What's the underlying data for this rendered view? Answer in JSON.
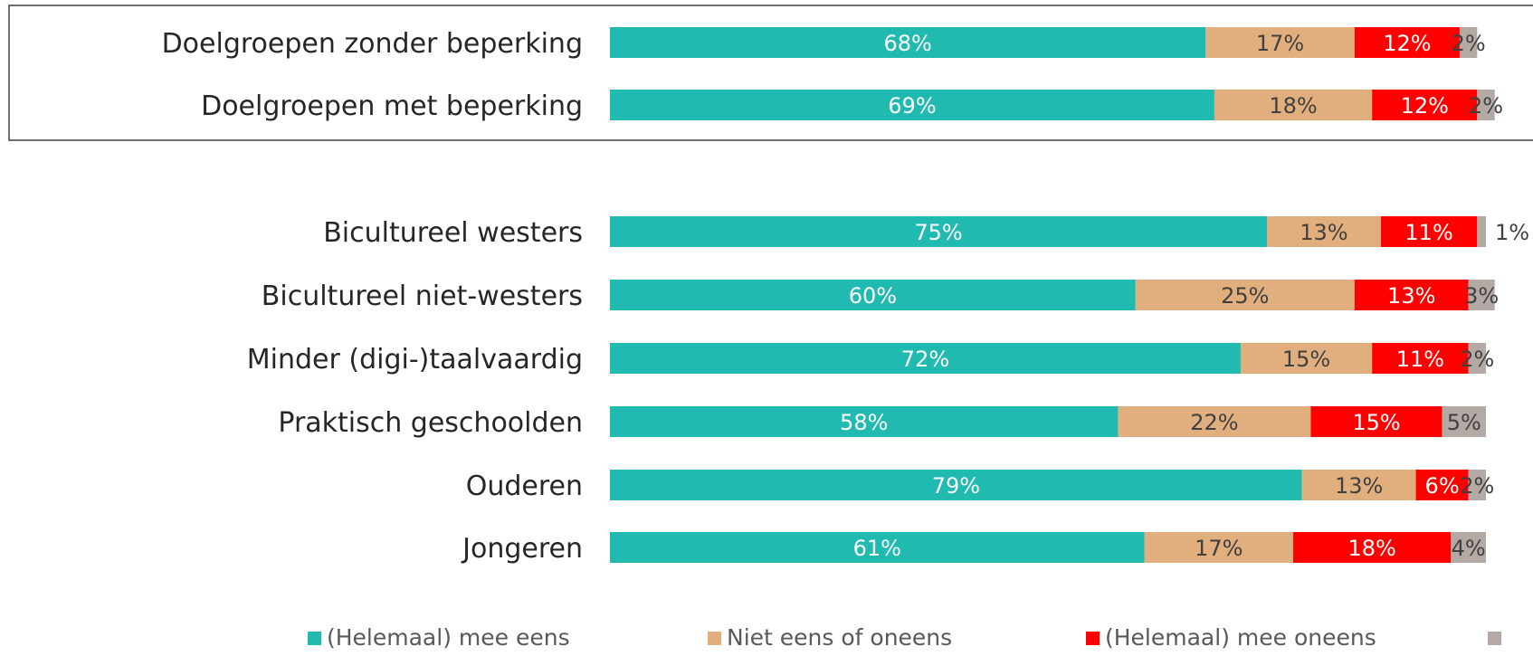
{
  "chart_data": {
    "type": "bar",
    "orientation": "horizontal",
    "stacked": true,
    "normalized_percent": true,
    "title": "",
    "xlabel": "",
    "ylabel": "",
    "xlim": [
      0,
      100
    ],
    "grid": false,
    "legend_position": "bottom",
    "groups": [
      {
        "boxed": true,
        "categories": [
          "Doelgroepen zonder beperking",
          "Doelgroepen met beperking"
        ],
        "series_values": [
          [
            68,
            17,
            12,
            2
          ],
          [
            69,
            18,
            12,
            2
          ]
        ],
        "labels": [
          [
            "68%",
            "17%",
            "12%",
            "2%"
          ],
          [
            "69%",
            "18%",
            "12%",
            "2%"
          ]
        ]
      },
      {
        "boxed": false,
        "categories": [
          "Bicultureel westers",
          "Bicultureel niet-westers",
          "Minder (digi-)taalvaardig",
          "Praktisch geschoolden",
          "Ouderen",
          "Jongeren"
        ],
        "series_values": [
          [
            75,
            13,
            11,
            1
          ],
          [
            60,
            25,
            13,
            3
          ],
          [
            72,
            15,
            11,
            2
          ],
          [
            58,
            22,
            15,
            5
          ],
          [
            79,
            13,
            6,
            2
          ],
          [
            61,
            17,
            18,
            4
          ]
        ],
        "labels": [
          [
            "75%",
            "13%",
            "11%",
            "1%"
          ],
          [
            "60%",
            "25%",
            "13%",
            "3%"
          ],
          [
            "72%",
            "15%",
            "11%",
            "2%"
          ],
          [
            "58%",
            "22%",
            "15%",
            "5%"
          ],
          [
            "79%",
            "13%",
            "6%",
            "2%"
          ],
          [
            "61%",
            "17%",
            "18%",
            "4%"
          ]
        ]
      }
    ],
    "series": [
      {
        "name": "(Helemaal) mee eens",
        "color": "#20BAB0",
        "label_color": "#ffffff"
      },
      {
        "name": "Niet eens of oneens",
        "color": "#E1AF7E",
        "label_color": "#404040"
      },
      {
        "name": "(Helemaal) mee oneens",
        "color": "#FF0000",
        "label_color": "#ffffff"
      },
      {
        "name": "",
        "color": "#B3AAA6",
        "label_color": "#404040"
      }
    ]
  }
}
